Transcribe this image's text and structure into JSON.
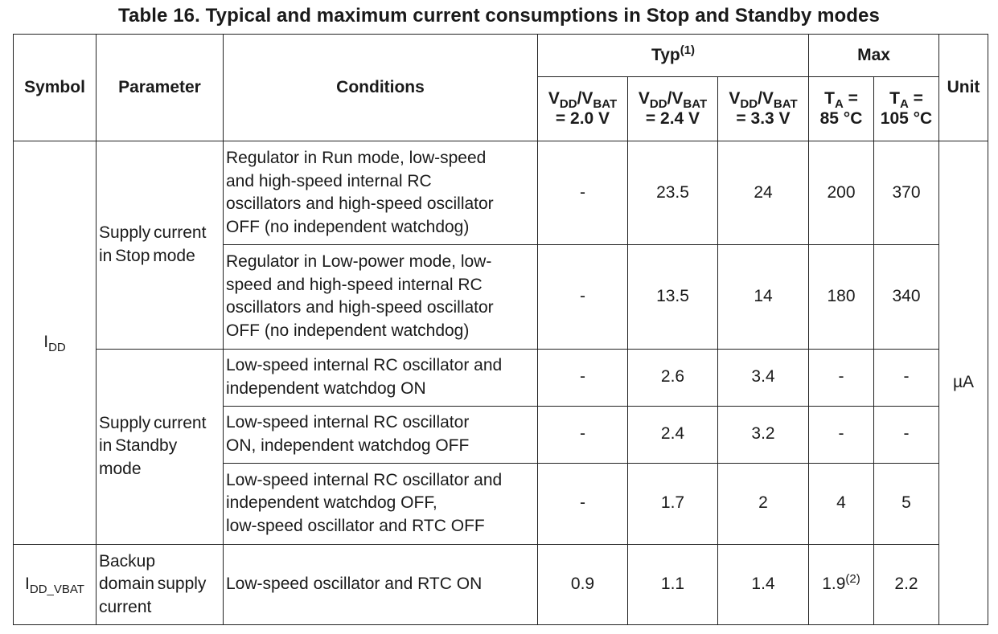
{
  "title": "Table 16. Typical and maximum current consumptions in Stop and Standby modes",
  "header": {
    "symbol": "Symbol",
    "parameter": "Parameter",
    "conditions": "Conditions",
    "typ": "Typ",
    "typ_note": "(1)",
    "max": "Max",
    "unit": "Unit",
    "vdd_vbat_cols": [
      {
        "v1": "V",
        "s1": "DD",
        "slash": "/V",
        "s2": "BAT",
        "value": "= 2.0 V"
      },
      {
        "v1": "V",
        "s1": "DD",
        "slash": "/V",
        "s2": "BAT",
        "value": "= 2.4 V"
      },
      {
        "v1": "V",
        "s1": "DD",
        "slash": "/V",
        "s2": "BAT",
        "value": "= 3.3 V"
      }
    ],
    "ta_cols": [
      {
        "t": "T",
        "sub": "A",
        "eq": " =",
        "value": "85 °C"
      },
      {
        "t": "T",
        "sub": "A",
        "eq": " =",
        "value": "105 °C"
      }
    ]
  },
  "groups": {
    "idd": {
      "sym": "I",
      "sub": "DD"
    },
    "idd_vbat": {
      "sym": "I",
      "sub": "DD_VBAT"
    },
    "stop_param": [
      "Supply current",
      "in Stop mode"
    ],
    "standby_param": [
      "Supply current",
      "in Standby",
      "mode"
    ],
    "backup_param": [
      "Backup",
      "domain supply",
      "current"
    ],
    "unit": "µA"
  },
  "rows": [
    {
      "conditions": [
        "Regulator in Run mode, low-speed",
        "and high-speed internal RC",
        "oscillators and high-speed oscillator",
        "OFF (no independent watchdog)"
      ],
      "v20": "-",
      "v24": "23.5",
      "v33": "24",
      "t85": "200",
      "t105": "370"
    },
    {
      "conditions": [
        "Regulator in Low-power mode, low-",
        "speed and high-speed internal RC",
        "oscillators and high-speed oscillator",
        "OFF (no independent watchdog)"
      ],
      "v20": "-",
      "v24": "13.5",
      "v33": "14",
      "t85": "180",
      "t105": "340"
    },
    {
      "conditions": [
        "Low-speed internal RC oscillator and",
        "independent watchdog ON"
      ],
      "v20": "-",
      "v24": "2.6",
      "v33": "3.4",
      "t85": "-",
      "t105": "-"
    },
    {
      "conditions": [
        "Low-speed internal RC oscillator",
        "ON, independent watchdog OFF"
      ],
      "v20": "-",
      "v24": "2.4",
      "v33": "3.2",
      "t85": "-",
      "t105": "-"
    },
    {
      "conditions": [
        "Low-speed internal RC oscillator and",
        "independent watchdog OFF,",
        "low-speed oscillator and RTC OFF"
      ],
      "v20": "-",
      "v24": "1.7",
      "v33": "2",
      "t85": "4",
      "t105": "5"
    },
    {
      "conditions": [
        "Low-speed oscillator and RTC ON"
      ],
      "v20": "0.9",
      "v24": "1.1",
      "v33": "1.4",
      "t85": "1.9",
      "t85_note": "(2)",
      "t105": "2.2"
    }
  ]
}
